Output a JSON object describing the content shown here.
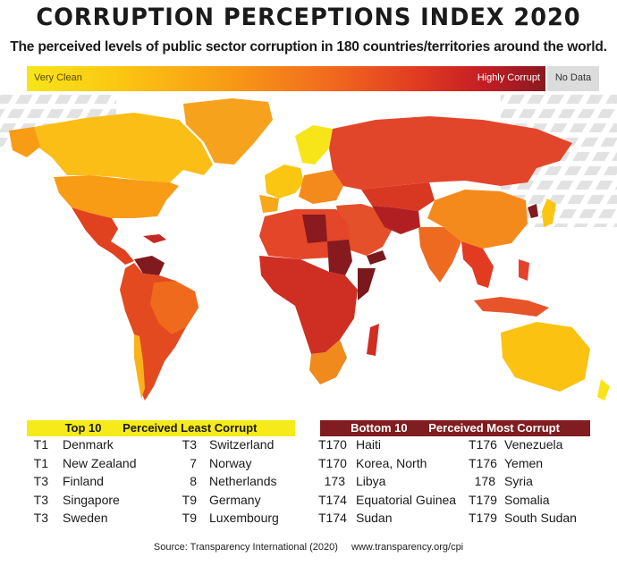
{
  "header": {
    "title": "CORRUPTION PERCEPTIONS INDEX 2020",
    "subtitle": "The perceived levels of public sector corruption in 180 countries/territories around the world."
  },
  "legend": {
    "low_label": "Very Clean",
    "high_label": "Highly Corrupt",
    "no_data_label": "No Data",
    "colors": {
      "very_clean": "#f7e51a",
      "clean": "#fbc612",
      "mid": "#f89c16",
      "upper_mid": "#f26b1e",
      "corrupt": "#e23b22",
      "highly_corrupt": "#8a1820",
      "no_data": "#dcdcdc"
    }
  },
  "top10": {
    "heading_left": "Top 10",
    "heading_right": "Perceived Least Corrupt",
    "header_color": "#f6ea1a",
    "col1": [
      {
        "rank": "T1",
        "country": "Denmark"
      },
      {
        "rank": "T1",
        "country": "New Zealand"
      },
      {
        "rank": "T3",
        "country": "Finland"
      },
      {
        "rank": "T3",
        "country": "Singapore"
      },
      {
        "rank": "T3",
        "country": "Sweden"
      }
    ],
    "col2": [
      {
        "rank": "T3",
        "country": "Switzerland"
      },
      {
        "rank": "7",
        "country": "Norway"
      },
      {
        "rank": "8",
        "country": "Netherlands"
      },
      {
        "rank": "T9",
        "country": "Germany"
      },
      {
        "rank": "T9",
        "country": "Luxembourg"
      }
    ]
  },
  "bottom10": {
    "heading_left": "Bottom 10",
    "heading_right": "Perceived Most Corrupt",
    "header_color": "#7f1d20",
    "col1": [
      {
        "rank": "T170",
        "country": "Haiti"
      },
      {
        "rank": "T170",
        "country": "Korea, North"
      },
      {
        "rank": "173",
        "country": "Libya"
      },
      {
        "rank": "T174",
        "country": "Equatorial Guinea"
      },
      {
        "rank": "T174",
        "country": "Sudan"
      }
    ],
    "col2": [
      {
        "rank": "T176",
        "country": "Venezuela"
      },
      {
        "rank": "T176",
        "country": "Yemen"
      },
      {
        "rank": "178",
        "country": "Syria"
      },
      {
        "rank": "T179",
        "country": "Somalia"
      },
      {
        "rank": "T179",
        "country": "South Sudan"
      }
    ]
  },
  "footer": {
    "source": "Source: Transparency International (2020)",
    "url": "www.transparency.org/cpi"
  }
}
